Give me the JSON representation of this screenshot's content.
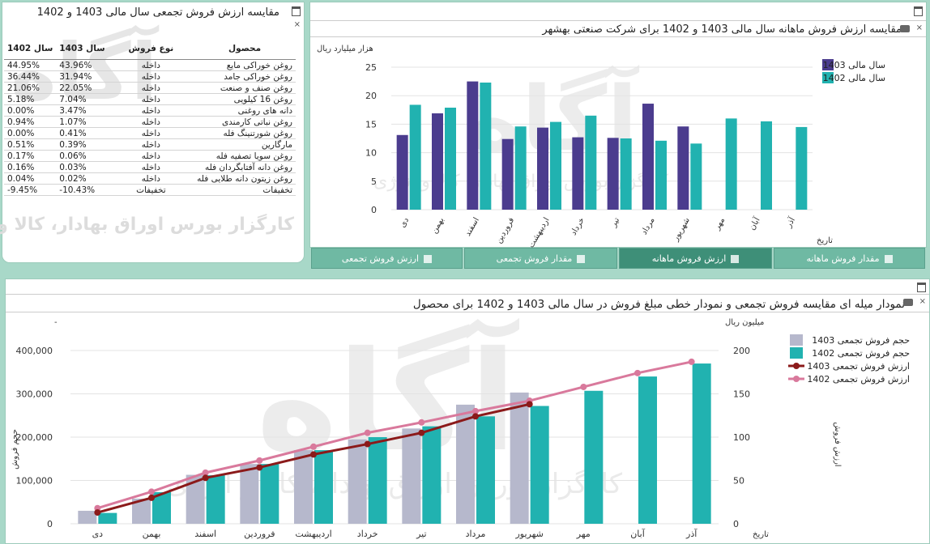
{
  "colors": {
    "c1403": "#4b3c8e",
    "c1402": "#21b2b0",
    "cvol1403": "#b6b8cc",
    "line1403": "#8b1a1a",
    "line1402": "#d9799c",
    "green": "#3e8f78"
  },
  "watermark": {
    "brand": "آگاه",
    "tagline": "کارگزار بورس اوراق بهادار، کالا و انرژی"
  },
  "table_panel": {
    "title": "مقایسه ارزش فروش تجمعی سال مالی 1403 و 1402",
    "headers": {
      "product": "محصول",
      "sale_type": "نوع فروش",
      "y1403": "سال 1403",
      "y1402": "سال 1402"
    },
    "rows": [
      {
        "product": "روغن خوراکی مایع",
        "type": "داخله",
        "y1403": "43.96%",
        "y1402": "44.95%"
      },
      {
        "product": "روغن خوراکی جامد",
        "type": "داخله",
        "y1403": "31.94%",
        "y1402": "36.44%"
      },
      {
        "product": "روغن صنف و صنعت",
        "type": "داخله",
        "y1403": "22.05%",
        "y1402": "21.06%"
      },
      {
        "product": "روغن 16 کیلویی",
        "type": "داخله",
        "y1403": "7.04%",
        "y1402": "5.18%"
      },
      {
        "product": "دانه های روغنی",
        "type": "داخله",
        "y1403": "3.47%",
        "y1402": "0.00%"
      },
      {
        "product": "روغن نباتی کارمندی",
        "type": "داخله",
        "y1403": "1.07%",
        "y1402": "0.94%"
      },
      {
        "product": "روغن شورتنینگ فله",
        "type": "داخله",
        "y1403": "0.41%",
        "y1402": "0.00%"
      },
      {
        "product": "مارگارین",
        "type": "داخله",
        "y1403": "0.39%",
        "y1402": "0.51%"
      },
      {
        "product": "روغن سویا تصفیه فله",
        "type": "داخله",
        "y1403": "0.06%",
        "y1402": "0.17%"
      },
      {
        "product": "روغن دانه آفتابگردان فله",
        "type": "داخله",
        "y1403": "0.03%",
        "y1402": "0.16%"
      },
      {
        "product": "روغن زیتون دانه طلایی فله",
        "type": "داخله",
        "y1403": "0.02%",
        "y1402": "0.04%"
      },
      {
        "product": "تخفیفات",
        "type": "تخفیفات",
        "y1403": "-10.43%",
        "y1402": "-9.45%"
      }
    ]
  },
  "monthly_panel": {
    "title": "مقایسه ارزش فروش ماهانه سال مالی 1403 و 1402 برای شرکت صنعتی بهشهر",
    "tabs": [
      "مقدار فروش ماهانه",
      "ارزش فروش ماهانه",
      "مقدار فروش تجمعی",
      "ارزش فروش تجمعی"
    ],
    "active_tab": 1
  },
  "cumulative_panel": {
    "title": "نمودار میله ای مقایسه فروش تجمعی و نمودار خطی مبلغ فروش در سال مالی 1403 و 1402 برای محصول"
  },
  "chart_data": [
    {
      "type": "bar",
      "title": "مقایسه ارزش فروش ماهانه سال مالی 1403 و 1402 برای شرکت صنعتی بهشهر",
      "ylabel": "هزار میلیارد ریال",
      "xlabel": "تاریخ",
      "ylim": [
        0,
        25
      ],
      "yticks": [
        0,
        5,
        10,
        15,
        20,
        25
      ],
      "grid": true,
      "legend_position": "top-right",
      "categories": [
        "دی",
        "بهمن",
        "اسفند",
        "فروردین",
        "اردیبهشت",
        "خرداد",
        "تیر",
        "مرداد",
        "شهریور",
        "مهر",
        "آبان",
        "آذر"
      ],
      "series": [
        {
          "name": "سال مالی 1403",
          "color": "#4b3c8e",
          "values": [
            13.1,
            16.9,
            22.5,
            12.4,
            14.4,
            12.7,
            12.6,
            18.6,
            14.6,
            null,
            null,
            null
          ]
        },
        {
          "name": "سال مالی 1402",
          "color": "#21b2b0",
          "values": [
            18.4,
            17.9,
            22.3,
            14.6,
            15.4,
            16.5,
            12.5,
            12.1,
            11.6,
            16.0,
            15.5,
            14.5
          ]
        }
      ]
    },
    {
      "type": "bar",
      "title": "نمودار میله ای مقایسه فروش تجمعی و نمودار خطی مبلغ فروش در سال مالی 1403 و 1402 برای محصول",
      "ylabel_left": "حجم فروش",
      "ylabel_right": "ارزش فروش",
      "right_unit": "میلیون ریال",
      "xlabel": "تاریخ",
      "ylim_left": [
        0,
        400000
      ],
      "yticks_left": [
        "0",
        "100,000",
        "200,000",
        "300,000",
        "400,000"
      ],
      "ylim_right": [
        0,
        200
      ],
      "yticks_right": [
        0,
        50,
        100,
        150,
        200
      ],
      "grid": true,
      "legend_position": "top-right",
      "categories": [
        "دی",
        "بهمن",
        "اسفند",
        "فروردین",
        "اردیبهشت",
        "خرداد",
        "تیر",
        "مرداد",
        "شهریور",
        "مهر",
        "آبان",
        "آذر"
      ],
      "bar_series": [
        {
          "name": "حجم فروش تجمعی 1403",
          "color": "#b6b8cc",
          "values": [
            30000,
            58000,
            113000,
            138000,
            170000,
            195000,
            220000,
            275000,
            303000,
            null,
            null,
            null
          ]
        },
        {
          "name": "حجم فروش تجمعی 1402",
          "color": "#21b2b0",
          "values": [
            25000,
            73000,
            112000,
            138000,
            170000,
            200000,
            225000,
            248000,
            272000,
            307000,
            340000,
            370000
          ]
        }
      ],
      "line_series": [
        {
          "name": "ارزش فروش تجمعی 1403",
          "color": "#8b1a1a",
          "values": [
            13,
            30,
            53,
            65,
            80,
            92,
            105,
            124,
            138,
            null,
            null,
            null
          ]
        },
        {
          "name": "ارزش فروش تجمعی 1402",
          "color": "#d9799c",
          "values": [
            18,
            37,
            59,
            73,
            89,
            105,
            117,
            130,
            142,
            158,
            174,
            187
          ]
        }
      ]
    }
  ]
}
